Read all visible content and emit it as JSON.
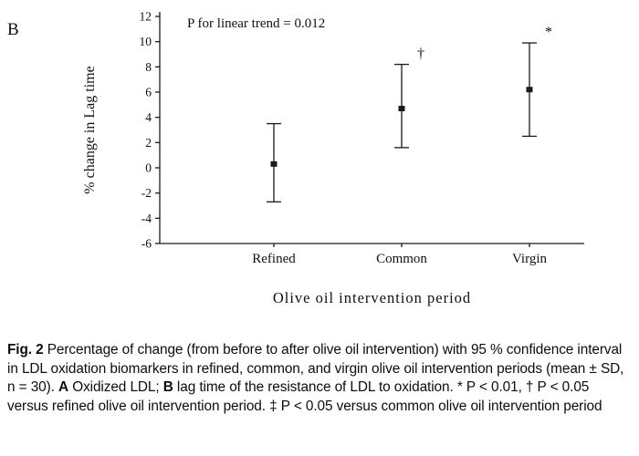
{
  "panel_label": "B",
  "chart_data": {
    "type": "scatter",
    "title": "",
    "annotation": "P for linear trend = 0.012",
    "categories": [
      "Refined",
      "Common",
      "Virgin"
    ],
    "series": [
      {
        "name": "mean % change in lag time",
        "values": [
          0.3,
          4.7,
          6.2
        ]
      },
      {
        "name": "upper confidence limit",
        "values": [
          3.5,
          8.2,
          9.9
        ]
      },
      {
        "name": "lower confidence limit",
        "values": [
          -2.7,
          1.6,
          2.5
        ]
      }
    ],
    "means": [
      0.3,
      4.7,
      6.2
    ],
    "upper": [
      3.5,
      8.2,
      9.9
    ],
    "lower": [
      -2.7,
      1.6,
      2.5
    ],
    "significance": [
      "",
      "†",
      "*"
    ],
    "ylabel": "% change in Lag time",
    "xlabel": "Olive oil intervention period",
    "ylim": [
      -6,
      12
    ],
    "ytick_step": 2,
    "grid": false,
    "marker": "square",
    "legend": "none"
  },
  "caption": {
    "segments": [
      {
        "text": "Fig. 2",
        "bold": true
      },
      {
        "text": "   Percentage of change (from before to after olive oil intervention) with 95 % confidence interval in LDL oxidation biomarkers in refined, common, and virgin olive oil intervention periods (mean ± SD, n = 30). ",
        "bold": false
      },
      {
        "text": "A",
        "bold": true
      },
      {
        "text": " Oxidized LDL; ",
        "bold": false
      },
      {
        "text": "B",
        "bold": true
      },
      {
        "text": " lag time of the resistance of LDL to oxidation. * P < 0.01, † P < 0.05 versus refined olive oil intervention period. ‡ P < 0.05 versus common olive oil intervention period",
        "bold": false
      }
    ]
  }
}
